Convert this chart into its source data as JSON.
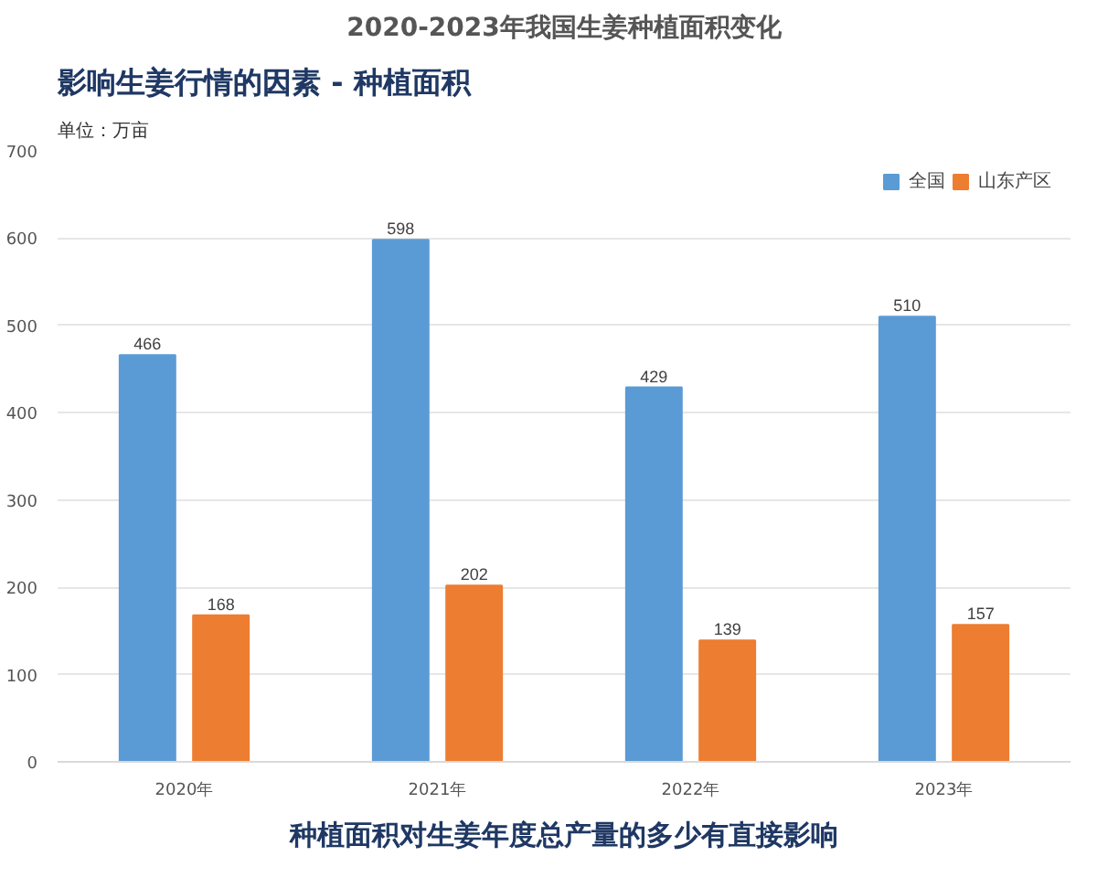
{
  "chart_data": {
    "type": "bar",
    "title": "2020-2023年我国生姜种植面积变化",
    "ylabel": "单位：万亩",
    "annotations": [
      "影响生姜行情的因素 - 种植面积",
      "种植面积对生姜年度总产量的多少有直接影响"
    ],
    "categories": [
      "2020年",
      "2021年",
      "2022年",
      "2023年"
    ],
    "series": [
      {
        "name": "全国",
        "color": "#5b9bd5",
        "values": [
          466,
          598,
          429,
          510
        ]
      },
      {
        "name": "山东产区",
        "color": "#ed7d31",
        "values": [
          168,
          202,
          139,
          157
        ]
      }
    ],
    "ylim": [
      0,
      700
    ],
    "yticks": [
      0,
      100,
      200,
      300,
      400,
      500,
      600,
      700
    ],
    "grid": "y",
    "legend": "top right",
    "data_labels": true
  }
}
